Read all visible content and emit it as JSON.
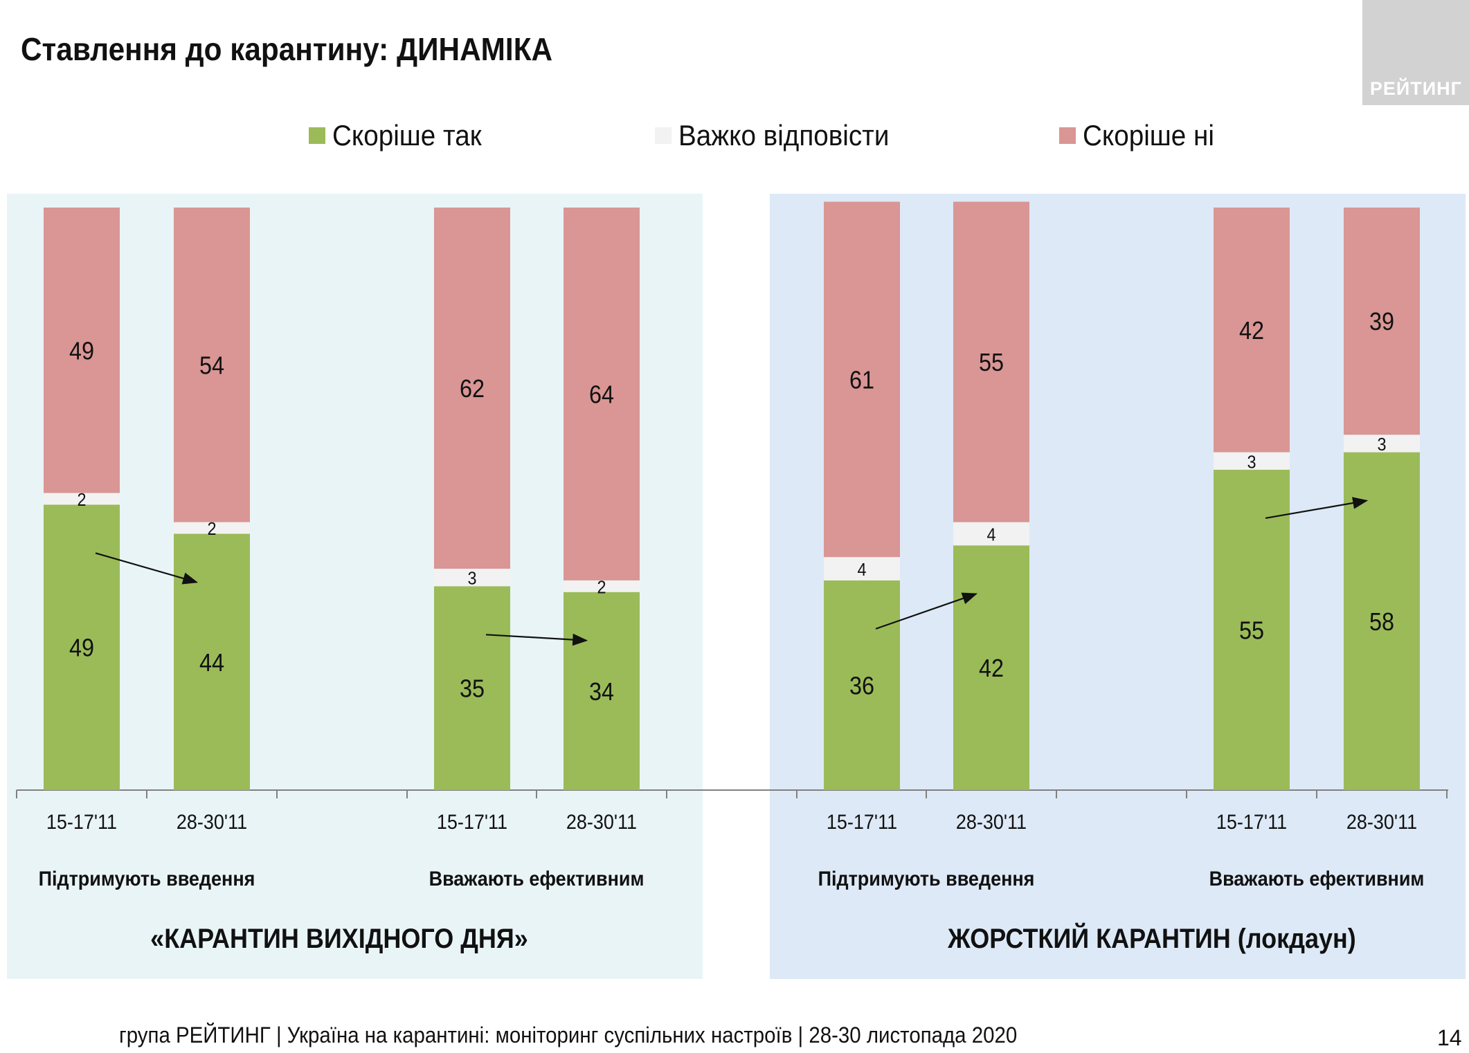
{
  "title": "Ставлення до карантину: ДИНАМІКА",
  "logo_text": "РЕЙТИНГ",
  "footer": "група РЕЙТИНГ | Україна на карантині: моніторинг суспільних настроїв | 28-30 листопада 2020",
  "page_number": "14",
  "legend": [
    {
      "label": "Скоріше так",
      "color": "#9bbb59"
    },
    {
      "label": "Важко відповісти",
      "color": "#f2f2f2"
    },
    {
      "label": "Скоріше ні",
      "color": "#d99694"
    }
  ],
  "chart_data": {
    "type": "bar",
    "stacked": true,
    "percent": true,
    "ylim": [
      0,
      100
    ],
    "legend_position": "top",
    "series": [
      {
        "name": "Скоріше так",
        "color": "#9bbb59"
      },
      {
        "name": "Важко відповісти",
        "color": "#f2f2f2"
      },
      {
        "name": "Скоріше ні",
        "color": "#d99694"
      }
    ],
    "sections": [
      {
        "title": "«КАРАНТИН ВИХІДНОГО ДНЯ»",
        "groups": [
          {
            "label": "Підтримують введення",
            "bars": [
              {
                "category": "15-17'11",
                "values": [
                  49,
                  2,
                  49
                ]
              },
              {
                "category": "28-30'11",
                "values": [
                  44,
                  2,
                  54
                ]
              }
            ]
          },
          {
            "label": "Вважають ефективним",
            "bars": [
              {
                "category": "15-17'11",
                "values": [
                  35,
                  3,
                  62
                ]
              },
              {
                "category": "28-30'11",
                "values": [
                  34,
                  2,
                  64
                ]
              }
            ]
          }
        ]
      },
      {
        "title": "ЖОРСТКИЙ КАРАНТИН (локдаун)",
        "groups": [
          {
            "label": "Підтримують введення",
            "bars": [
              {
                "category": "15-17'11",
                "values": [
                  36,
                  4,
                  61
                ]
              },
              {
                "category": "28-30'11",
                "values": [
                  42,
                  4,
                  55
                ]
              }
            ]
          },
          {
            "label": "Вважають ефективним",
            "bars": [
              {
                "category": "15-17'11",
                "values": [
                  55,
                  3,
                  42
                ]
              },
              {
                "category": "28-30'11",
                "values": [
                  58,
                  3,
                  39
                ]
              }
            ]
          }
        ]
      }
    ]
  }
}
